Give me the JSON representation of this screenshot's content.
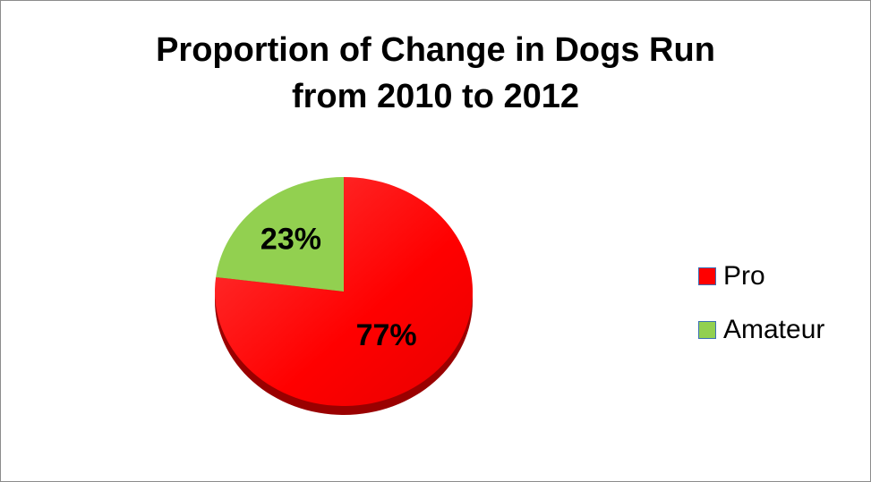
{
  "chart_data": {
    "type": "pie",
    "title": [
      "Proportion of Change in Dogs Run",
      "from 2010 to 2012"
    ],
    "categories": [
      "Pro",
      "Amateur"
    ],
    "values": [
      77,
      23
    ],
    "data_labels": [
      "77%",
      "23%"
    ],
    "colors": [
      "#ff0000",
      "#92d050"
    ],
    "legend_position": "right",
    "style": "3d"
  }
}
